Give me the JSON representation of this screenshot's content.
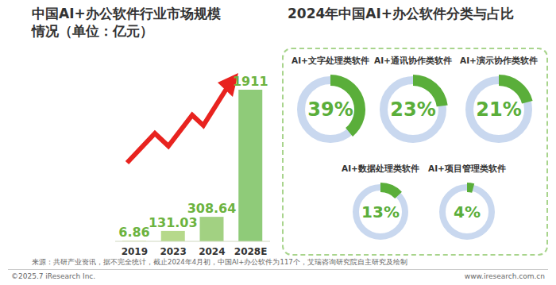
{
  "chart_data": [
    {
      "type": "bar",
      "title": "中国AI+办公软件行业市场规模\n情况（单位：亿元）",
      "categories": [
        "2019",
        "2023",
        "2024",
        "2028E"
      ],
      "values": [
        6.86,
        131.03,
        308.64,
        1911
      ],
      "colors": [
        "#d3e59e",
        "#b6d98b",
        "#a2d182",
        "#8fcb79"
      ],
      "ylim": [
        0,
        2000
      ],
      "data_labels": true,
      "tick_labels": "x",
      "grid": false
    },
    {
      "type": "pie",
      "title": "2024年中国AI+办公软件分类与占比",
      "categories": [
        "AI+文字处理类软件",
        "AI+通讯协作类软件",
        "AI+演示协作类软件",
        "AI+数据处理类软件",
        "AI+项目管理类软件"
      ],
      "values": [
        39,
        23,
        21,
        13,
        4
      ],
      "value_labels": [
        "39%",
        "23%",
        "21%",
        "13%",
        "4%"
      ],
      "color": "#5aae3a",
      "data_labels": true
    }
  ],
  "footer": {
    "source": "来源：共研产业资讯，据不完全统计，截止2024年4月初，中国AI+办公软件为117个，艾瑞咨询研究院自主研究及绘制",
    "copyright": "©2025.7 iResearch Inc.",
    "website": "www.iresearch.com.cn"
  }
}
